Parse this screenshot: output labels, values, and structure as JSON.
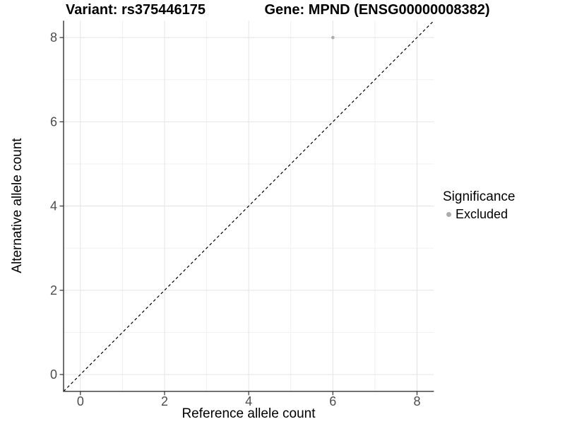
{
  "chart_data": {
    "type": "scatter",
    "title_left": "Variant: rs375446175",
    "title_right": "Gene: MPND (ENSG00000008382)",
    "xlabel": "Reference allele count",
    "ylabel": "Alternative allele count",
    "xlim": [
      -0.4,
      8.4
    ],
    "ylim": [
      -0.4,
      8.4
    ],
    "x_ticks": [
      0,
      2,
      4,
      6,
      8
    ],
    "y_ticks": [
      0,
      2,
      4,
      6,
      8
    ],
    "x_minor_ticks": [
      1,
      3,
      5,
      7
    ],
    "y_minor_ticks": [
      1,
      3,
      5,
      7
    ],
    "grid": "major-and-minor",
    "identity_line": {
      "slope": 1,
      "intercept": 0,
      "style": "dashed",
      "color": "#000000"
    },
    "series": [
      {
        "name": "Excluded",
        "color": "#acacac",
        "point_radius": 2.3,
        "points": [
          {
            "x": 6,
            "y": 8
          }
        ]
      }
    ],
    "legend": {
      "title": "Significance",
      "position": "right",
      "items": [
        {
          "label": "Excluded",
          "color": "#acacac",
          "marker": "dot-icon"
        }
      ]
    }
  },
  "colors": {
    "background": "#ffffff",
    "grid_major": "#e4e4e4",
    "grid_minor": "#f1f1f1",
    "axis_line": "#333333",
    "tick_label": "#4d4d4d",
    "point": "#acacac"
  }
}
